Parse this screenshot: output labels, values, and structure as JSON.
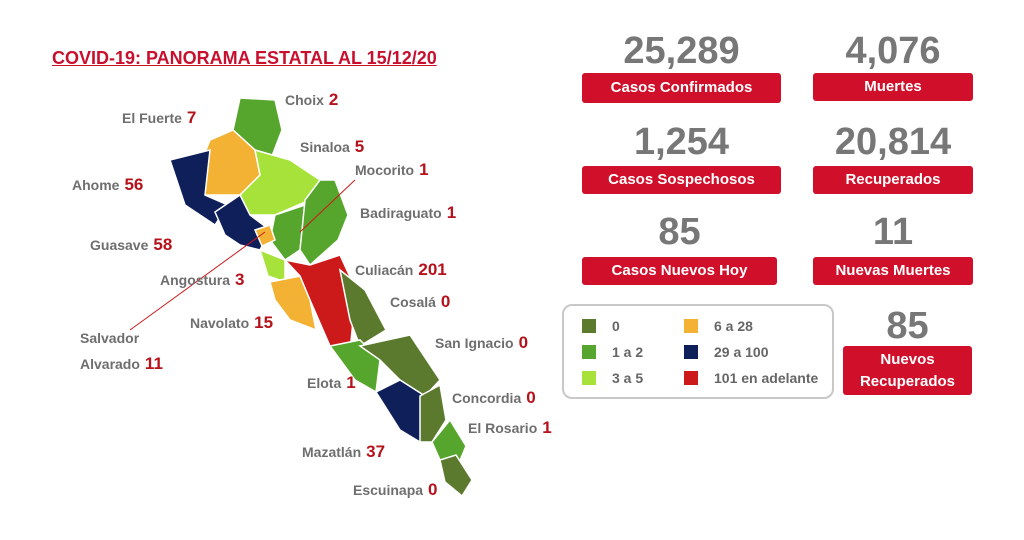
{
  "header": {
    "title": "COVID-19: PANORAMA ESTATAL AL 15/12/20"
  },
  "municipalities": [
    {
      "name": "El Fuerte",
      "count": "7"
    },
    {
      "name": "Choix",
      "count": "2"
    },
    {
      "name": "Sinaloa",
      "count": "5"
    },
    {
      "name": "Mocorito",
      "count": "1"
    },
    {
      "name": "Ahome",
      "count": "56"
    },
    {
      "name": "Badiraguato",
      "count": "1"
    },
    {
      "name": "Guasave",
      "count": "58"
    },
    {
      "name": "Culiacán",
      "count": "201"
    },
    {
      "name": "Angostura",
      "count": "3"
    },
    {
      "name": "Cosalá",
      "count": "0"
    },
    {
      "name": "Navolato",
      "count": "15"
    },
    {
      "name": "Salvador Alvarado",
      "count": "11"
    },
    {
      "name": "San Ignacio",
      "count": "0"
    },
    {
      "name": "Elota",
      "count": "1"
    },
    {
      "name": "Concordia",
      "count": "0"
    },
    {
      "name": "El Rosario",
      "count": "1"
    },
    {
      "name": "Mazatlán",
      "count": "37"
    },
    {
      "name": "Escuinapa",
      "count": "0"
    }
  ],
  "stats": [
    {
      "value": "25,289",
      "label": "Casos Confirmados"
    },
    {
      "value": "4,076",
      "label": "Muertes"
    },
    {
      "value": "1,254",
      "label": "Casos Sospechosos"
    },
    {
      "value": "20,814",
      "label": "Recuperados"
    },
    {
      "value": "85",
      "label": "Casos Nuevos Hoy"
    },
    {
      "value": "11",
      "label": "Nuevas Muertes"
    },
    {
      "value": "85",
      "label": "Nuevos Recuperados"
    }
  ],
  "legend": [
    {
      "label": "0",
      "color": "#5b7a2e"
    },
    {
      "label": "1 a 2",
      "color": "#56a52c"
    },
    {
      "label": "3 a 5",
      "color": "#a6e23a"
    },
    {
      "label": "6 a 28",
      "color": "#f3b234"
    },
    {
      "label": "29 a 100",
      "color": "#0f1f5a"
    },
    {
      "label": "101 en adelante",
      "color": "#cc1a1a"
    }
  ]
}
